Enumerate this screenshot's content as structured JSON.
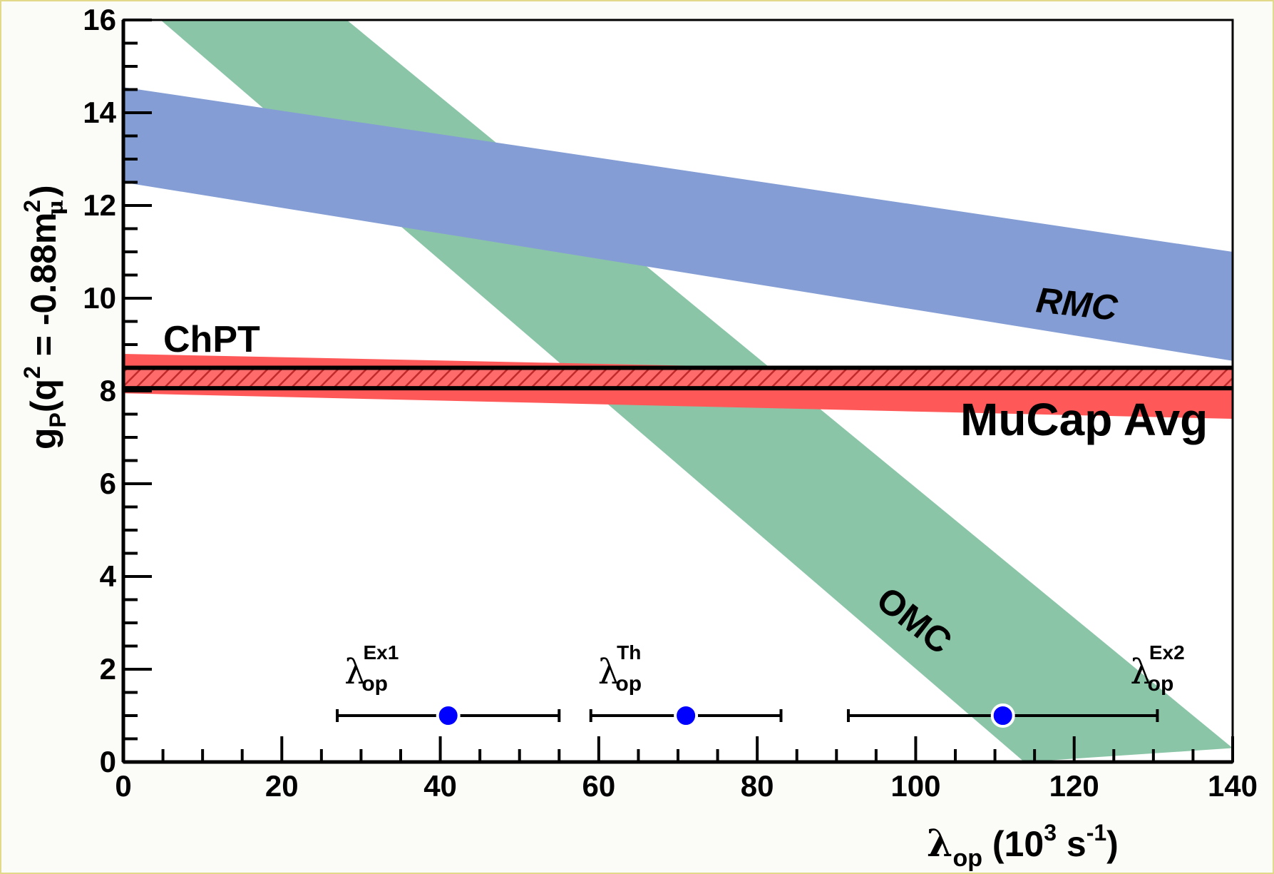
{
  "chart_data": {
    "type": "area",
    "xlabel": {
      "symbol": "λ",
      "sub": "op",
      "unit_open": " (10",
      "unit_exp": "3",
      "unit_mid": " s",
      "unit_exp2": "-1",
      "unit_close": ")"
    },
    "ylabel": {
      "main": "g",
      "sub": "P",
      "open": "(q",
      "exp": "2",
      "mid": " = -0.88m",
      "exp2": "2",
      "sub2": "μ",
      "close": ")"
    },
    "xlim": [
      0,
      140
    ],
    "ylim": [
      0,
      16
    ],
    "x_ticks": [
      "0",
      "20",
      "40",
      "60",
      "80",
      "100",
      "120",
      "140"
    ],
    "y_ticks": [
      "0",
      "2",
      "4",
      "6",
      "8",
      "10",
      "12",
      "14",
      "16"
    ],
    "bands": [
      {
        "name": "OMC",
        "color": "#8bc5a7",
        "points_upper": [
          [
            28.2,
            16
          ],
          [
            140,
            0.3
          ]
        ],
        "points_lower": [
          [
            4.7,
            16
          ],
          [
            113.7,
            0
          ]
        ]
      },
      {
        "name": "RMC",
        "color": "#849ed5",
        "points_upper": [
          [
            0,
            14.55
          ],
          [
            140,
            11.0
          ]
        ],
        "points_lower": [
          [
            0,
            12.5
          ],
          [
            140,
            8.65
          ]
        ]
      },
      {
        "name": "ChPT",
        "color": "#ff5858",
        "points_upper": [
          [
            0,
            8.8
          ],
          [
            140,
            8.3
          ]
        ],
        "points_lower": [
          [
            0,
            7.95
          ],
          [
            140,
            7.4
          ]
        ]
      }
    ],
    "mucap_avg": {
      "name": "MuCap Avg",
      "y_low": 8.06,
      "y_high": 8.5,
      "hatch_color": "#d83a3a"
    },
    "points": [
      {
        "label": "λ",
        "sub": "op",
        "sup": "Ex1",
        "x": 41,
        "y": 1.0,
        "xerr": [
          27,
          55
        ]
      },
      {
        "label": "λ",
        "sub": "op",
        "sup": "Th",
        "x": 71,
        "y": 1.0,
        "xerr": [
          59,
          83
        ]
      },
      {
        "label": "λ",
        "sub": "op",
        "sup": "Ex2",
        "x": 111,
        "y": 1.0,
        "xerr": [
          91.5,
          130.5
        ]
      }
    ],
    "annotations": {
      "rmc": "RMC",
      "omc": "OMC",
      "chpt": "ChPT",
      "mucap": "MuCap Avg"
    }
  }
}
